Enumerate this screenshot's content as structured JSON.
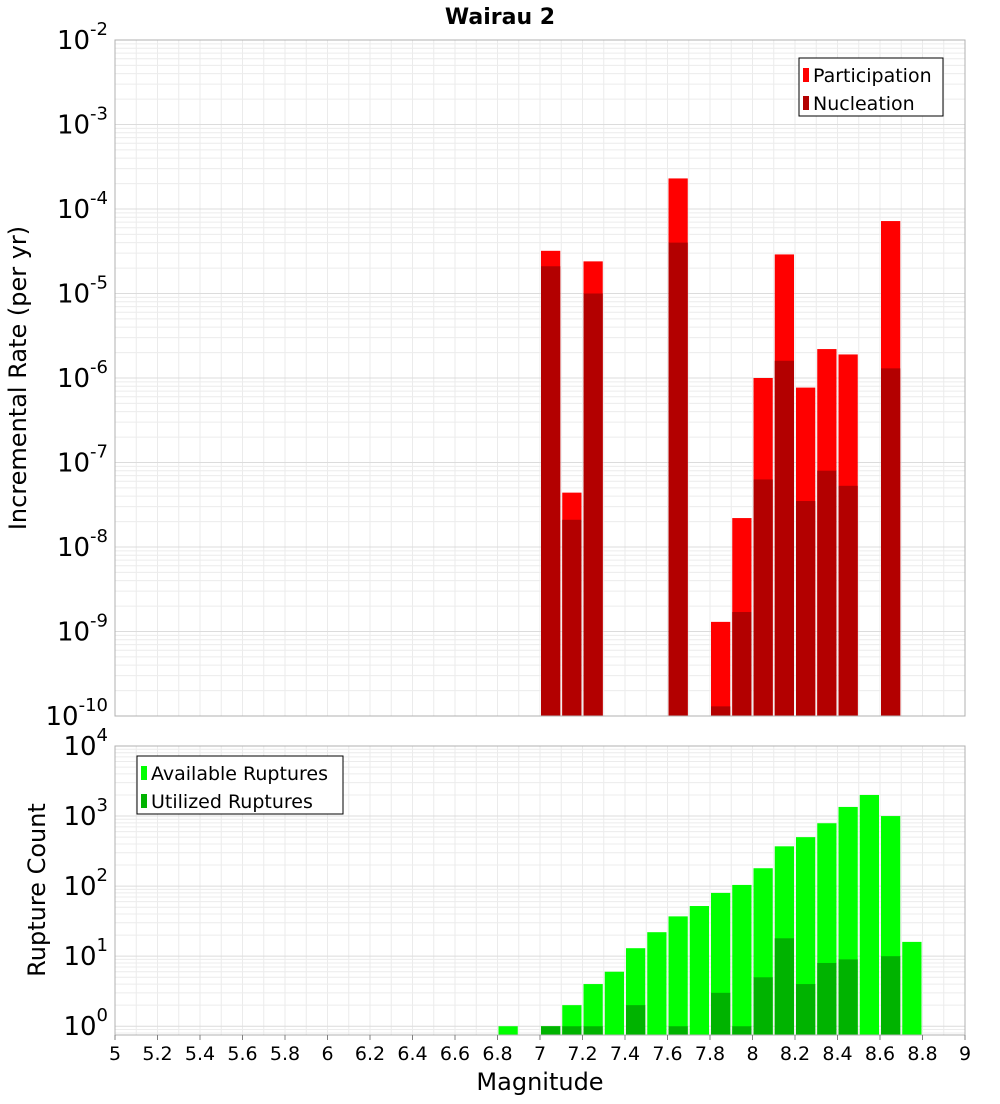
{
  "chart_data": [
    {
      "type": "bar",
      "title": "Wairau 2",
      "ylabel": "Incremental Rate (per yr)",
      "xlabel": "",
      "xlim": [
        5,
        9
      ],
      "ylim": [
        1e-10,
        0.01
      ],
      "yscale": "log",
      "grid": true,
      "legend": "top-right",
      "ytick_exponents": [
        "-2",
        "-3",
        "-4",
        "-5",
        "-6",
        "-7",
        "-8",
        "-9",
        "-10"
      ],
      "ytick_base": "10",
      "x": [
        7.05,
        7.15,
        7.25,
        7.65,
        7.85,
        7.95,
        8.05,
        8.15,
        8.25,
        8.35,
        8.45,
        8.65
      ],
      "series": [
        {
          "name": "Participation",
          "color": "#ff0000",
          "values": [
            3.2e-05,
            4.4e-08,
            2.4e-05,
            0.00023,
            1.3e-09,
            2.2e-08,
            1e-06,
            2.9e-05,
            7.7e-07,
            2.2e-06,
            1.9e-06,
            7.2e-05
          ]
        },
        {
          "name": "Nucleation",
          "color": "#b30000",
          "values": [
            2.1e-05,
            2.1e-08,
            1e-05,
            4e-05,
            1.3e-10,
            1.7e-09,
            6.3e-08,
            1.6e-06,
            3.5e-08,
            8e-08,
            5.3e-08,
            1.3e-06
          ]
        }
      ]
    },
    {
      "type": "bar",
      "title": "",
      "ylabel": "Rupture Count",
      "xlabel": "Magnitude",
      "xlim": [
        5,
        9
      ],
      "ylim": [
        0.75,
        10000
      ],
      "yscale": "log",
      "grid": true,
      "legend": "top-left",
      "ytick_exponents": [
        "4",
        "3",
        "2",
        "1",
        "0"
      ],
      "ytick_base": "10",
      "xtick_labels": [
        "5",
        "5.2",
        "5.4",
        "5.6",
        "5.8",
        "6",
        "6.2",
        "6.4",
        "6.6",
        "6.8",
        "7",
        "7.2",
        "7.4",
        "7.6",
        "7.8",
        "8",
        "8.2",
        "8.4",
        "8.6",
        "8.8",
        "9"
      ],
      "x": [
        6.85,
        7.05,
        7.15,
        7.25,
        7.35,
        7.45,
        7.55,
        7.65,
        7.75,
        7.85,
        7.95,
        8.05,
        8.15,
        8.25,
        8.35,
        8.45,
        8.55,
        8.65,
        8.75
      ],
      "series": [
        {
          "name": "Available Ruptures",
          "color": "#00ff00",
          "values": [
            1,
            1,
            2,
            4,
            6,
            13,
            22,
            37,
            52,
            80,
            104,
            180,
            370,
            500,
            790,
            1350,
            2000,
            1000,
            16
          ]
        },
        {
          "name": "Utilized Ruptures",
          "color": "#00b300",
          "values": [
            0,
            1,
            1,
            1,
            0,
            2,
            0,
            1,
            0,
            3,
            1,
            5,
            18,
            4,
            8,
            9,
            0,
            10,
            0
          ]
        }
      ]
    }
  ]
}
